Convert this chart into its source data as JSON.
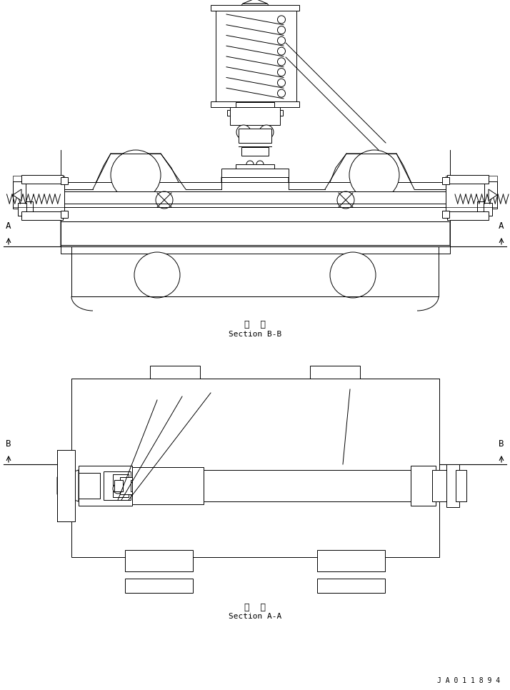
{
  "bg_color": "#ffffff",
  "line_color": "#000000",
  "fig_width": 7.14,
  "fig_height": 9.66,
  "dpi": 100,
  "section_bb_label_jp": "断  面",
  "section_bb_label_en": "Section B-B",
  "section_aa_label_jp": "断  面",
  "section_aa_label_en": "Section A-A",
  "watermark": "J A 0 1 1 8 9 4",
  "label_A": "A",
  "label_B": "B"
}
